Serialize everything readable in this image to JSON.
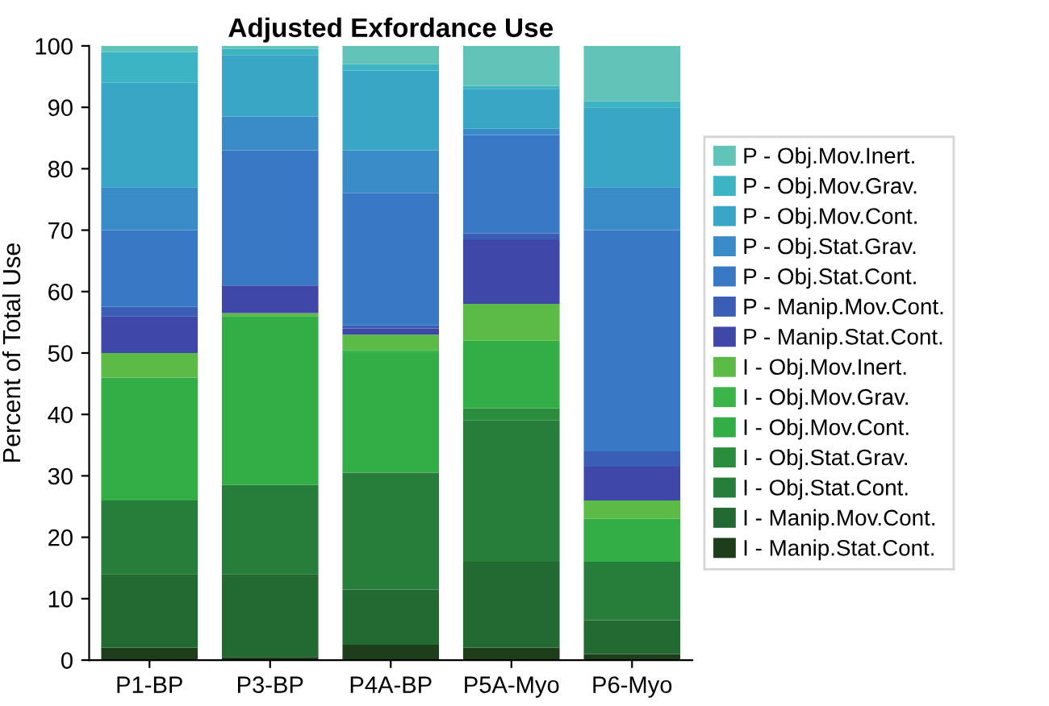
{
  "chart_data": {
    "type": "bar",
    "stacked": true,
    "title": "Adjusted Exfordance Use",
    "ylabel": "Percent of Total Use",
    "categories": [
      "P1-BP",
      "P3-BP",
      "P4A-BP",
      "P5A-Myo",
      "P6-Myo"
    ],
    "ylim": [
      0,
      100
    ],
    "yticks": [
      0,
      10,
      20,
      30,
      40,
      50,
      60,
      70,
      80,
      90,
      100
    ],
    "grid": false,
    "legend": "right",
    "series": [
      {
        "name": "I - Manip.Stat.Cont.",
        "color": "#1e3d1a",
        "values": [
          2,
          0.5,
          2.5,
          2,
          1
        ]
      },
      {
        "name": "I - Manip.Mov.Cont.",
        "color": "#236a32",
        "values": [
          12,
          13.5,
          9,
          14,
          5.5
        ]
      },
      {
        "name": "I - Obj.Stat.Cont.",
        "color": "#267e3a",
        "values": [
          12,
          14.5,
          19,
          23,
          9.5
        ]
      },
      {
        "name": "I - Obj.Stat.Grav.",
        "color": "#2a8d3e",
        "values": [
          0,
          0,
          0,
          2,
          0
        ]
      },
      {
        "name": "I - Obj.Mov.Cont.",
        "color": "#33ad46",
        "values": [
          20,
          27.5,
          19.5,
          11,
          7
        ]
      },
      {
        "name": "I - Obj.Mov.Grav.",
        "color": "#3bb54a",
        "values": [
          0,
          0,
          0.5,
          0,
          0
        ]
      },
      {
        "name": "I - Obj.Mov.Inert.",
        "color": "#5cbb47",
        "values": [
          4,
          0.5,
          2.5,
          6,
          3
        ]
      },
      {
        "name": "P - Manip.Stat.Cont.",
        "color": "#3f48a8",
        "values": [
          6,
          4.5,
          1,
          10.5,
          5.5
        ]
      },
      {
        "name": "P - Manip.Mov.Cont.",
        "color": "#3a5db5",
        "values": [
          1.5,
          0,
          0.5,
          1,
          2.5
        ]
      },
      {
        "name": "P - Obj.Stat.Cont.",
        "color": "#3878c4",
        "values": [
          12.5,
          22,
          21.5,
          16,
          36
        ]
      },
      {
        "name": "P - Obj.Stat.Grav.",
        "color": "#3a8cc8",
        "values": [
          7,
          5.5,
          7,
          1,
          7
        ]
      },
      {
        "name": "P - Obj.Mov.Cont.",
        "color": "#38a6c4",
        "values": [
          17,
          10,
          13,
          6.5,
          13
        ]
      },
      {
        "name": "P - Obj.Mov.Grav.",
        "color": "#3cb4c4",
        "values": [
          5,
          1,
          1,
          0.5,
          1
        ]
      },
      {
        "name": "P - Obj.Mov.Inert.",
        "color": "#62c3b8",
        "values": [
          1,
          0.5,
          3,
          6.5,
          9
        ]
      }
    ]
  }
}
